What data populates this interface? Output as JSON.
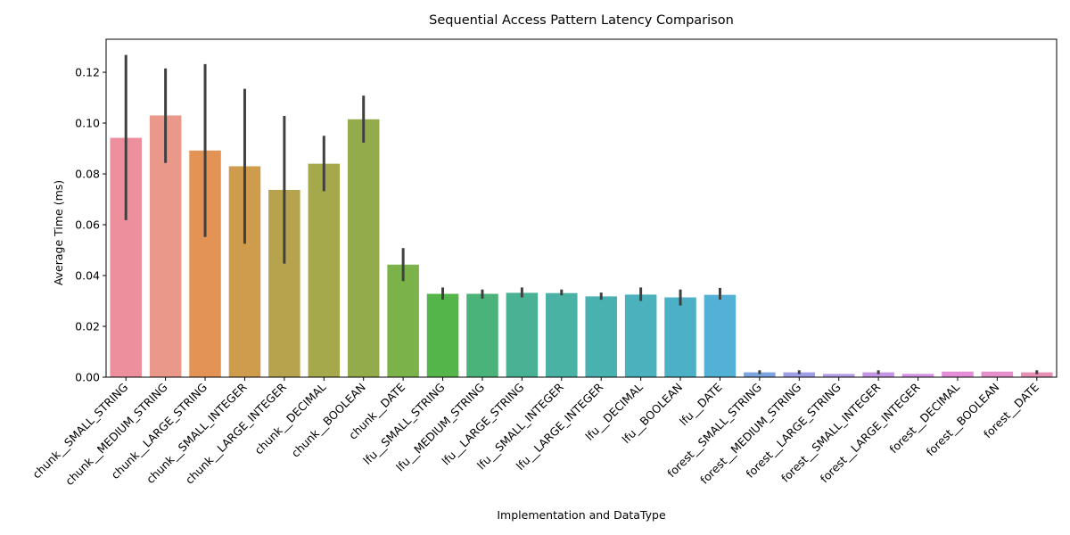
{
  "chart_data": {
    "type": "bar",
    "title": "Sequential Access Pattern Latency Comparison",
    "xlabel": "Implementation and DataType",
    "ylabel": "Average Time (ms)",
    "ylim": [
      0,
      0.133
    ],
    "yticks": [
      0.0,
      0.02,
      0.04,
      0.06,
      0.08,
      0.1,
      0.12
    ],
    "ytick_labels": [
      "0.00",
      "0.02",
      "0.04",
      "0.06",
      "0.08",
      "0.10",
      "0.12"
    ],
    "grid": false,
    "legend": "none",
    "error_bar_color": "#404040",
    "categories": [
      "chunk__SMALL_STRING",
      "chunk__MEDIUM_STRING",
      "chunk__LARGE_STRING",
      "chunk__SMALL_INTEGER",
      "chunk__LARGE_INTEGER",
      "chunk__DECIMAL",
      "chunk__BOOLEAN",
      "chunk__DATE",
      "lfu__SMALL_STRING",
      "lfu__MEDIUM_STRING",
      "lfu__LARGE_STRING",
      "lfu__SMALL_INTEGER",
      "lfu__LARGE_INTEGER",
      "lfu__DECIMAL",
      "lfu__BOOLEAN",
      "lfu__DATE",
      "forest__SMALL_STRING",
      "forest__MEDIUM_STRING",
      "forest__LARGE_STRING",
      "forest__SMALL_INTEGER",
      "forest__LARGE_INTEGER",
      "forest__DECIMAL",
      "forest__BOOLEAN",
      "forest__DATE"
    ],
    "values": [
      0.0942,
      0.103,
      0.0892,
      0.083,
      0.0737,
      0.084,
      0.1015,
      0.0443,
      0.0328,
      0.0328,
      0.0332,
      0.0331,
      0.0318,
      0.0325,
      0.0314,
      0.0324,
      0.0019,
      0.0019,
      0.0013,
      0.0019,
      0.0013,
      0.0022,
      0.0022,
      0.0019
    ],
    "error_low": [
      0.0618,
      0.0843,
      0.0552,
      0.0525,
      0.0447,
      0.0732,
      0.0923,
      0.0378,
      0.0305,
      0.0309,
      0.0314,
      0.0322,
      0.0305,
      0.03,
      0.0282,
      0.0305,
      0.0012,
      0.0012,
      0.0013,
      0.0012,
      0.0013,
      0.0022,
      0.0022,
      0.0012
    ],
    "error_high": [
      0.1268,
      0.1215,
      0.1232,
      0.1135,
      0.1028,
      0.095,
      0.1108,
      0.0508,
      0.0353,
      0.0345,
      0.0353,
      0.0345,
      0.0333,
      0.0353,
      0.0345,
      0.0351,
      0.0027,
      0.0027,
      0.0013,
      0.0027,
      0.0013,
      0.0022,
      0.0022,
      0.0027
    ],
    "colors": [
      "#ee8f9d",
      "#e9988a",
      "#e49356",
      "#cf9b4c",
      "#b7a24d",
      "#a6a84c",
      "#93ab4a",
      "#7cb24a",
      "#54b64a",
      "#4ab37a",
      "#4ab294",
      "#4ab2a4",
      "#4ab1b1",
      "#4ab1bd",
      "#4cb0c6",
      "#54b1d6",
      "#7ca5e0",
      "#9e9fe6",
      "#b39de8",
      "#c595e5",
      "#d493e3",
      "#e38ed6",
      "#e68fca",
      "#e88fb6"
    ]
  }
}
